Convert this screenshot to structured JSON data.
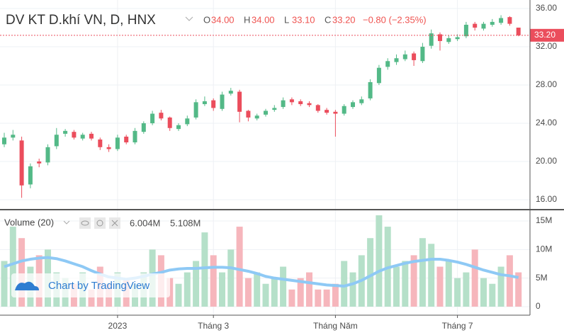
{
  "chart_data": [
    {
      "type": "candlestick",
      "title": "DV KT D.khí VN, D, HNX",
      "ohlc_legend": [
        [
          "O",
          "34.00"
        ],
        [
          "H",
          "34.00"
        ],
        [
          "L",
          "33.10"
        ],
        [
          "C",
          "33.20"
        ]
      ],
      "change_label": "−0.80 (−2.35%)",
      "last_label": "33.20",
      "up_color": "#53b987",
      "down_color": "#eb4d5c",
      "open": [
        21.8,
        22.5,
        22.2,
        17.6,
        20.0,
        19.9,
        21.6,
        22.9,
        23.1,
        22.4,
        22.9,
        22.3,
        21.5,
        21.3,
        22.6,
        22.0,
        23.1,
        24.0,
        25.1,
        24.6,
        23.4,
        23.9,
        24.6,
        26.0,
        26.4,
        25.5,
        27.1,
        27.3,
        25.3,
        24.5,
        24.9,
        25.4,
        25.7,
        26.5,
        26.3,
        26.1,
        25.9,
        25.4,
        25.2,
        25.0,
        25.7,
        26.1,
        26.6,
        28.2,
        29.9,
        30.4,
        30.7,
        31.3,
        30.5,
        32.1,
        33.3,
        32.5,
        32.8,
        33.1,
        34.4,
        33.9,
        34.3,
        34.5,
        35.1,
        34.0
      ],
      "high": [
        23.0,
        23.3,
        22.6,
        19.8,
        20.3,
        21.8,
        23.5,
        23.4,
        23.3,
        23.0,
        23.1,
        22.5,
        21.8,
        22.8,
        22.8,
        23.5,
        24.2,
        25.3,
        25.4,
        24.7,
        24.0,
        24.8,
        26.5,
        26.8,
        26.6,
        27.3,
        27.7,
        27.5,
        25.4,
        25.0,
        25.5,
        25.9,
        26.7,
        26.7,
        26.5,
        26.3,
        26.0,
        25.6,
        25.4,
        26.0,
        26.4,
        26.8,
        28.6,
        30.1,
        30.8,
        31.2,
        31.6,
        31.5,
        32.4,
        33.8,
        33.5,
        33.2,
        33.3,
        34.6,
        34.6,
        34.6,
        34.9,
        35.3,
        35.2,
        34.0
      ],
      "low": [
        21.5,
        22.2,
        16.2,
        17.2,
        19.4,
        19.6,
        21.3,
        22.6,
        22.3,
        22.2,
        22.2,
        21.2,
        21.0,
        21.1,
        21.8,
        21.8,
        22.9,
        23.8,
        24.3,
        23.2,
        23.2,
        23.7,
        24.4,
        25.8,
        25.3,
        25.3,
        26.9,
        24.1,
        24.2,
        24.3,
        24.7,
        25.2,
        25.5,
        25.9,
        25.8,
        25.7,
        25.1,
        24.9,
        22.6,
        24.8,
        25.5,
        25.9,
        26.4,
        28.0,
        29.6,
        30.1,
        30.5,
        30.0,
        30.3,
        31.8,
        31.6,
        32.3,
        32.6,
        32.9,
        33.7,
        33.7,
        34.1,
        34.3,
        34.2,
        33.1
      ],
      "close": [
        22.5,
        22.8,
        17.5,
        19.5,
        19.8,
        21.5,
        22.8,
        23.2,
        22.5,
        22.8,
        22.4,
        21.5,
        21.3,
        22.5,
        22.0,
        23.2,
        24.0,
        25.0,
        24.5,
        23.5,
        23.8,
        24.5,
        26.2,
        26.3,
        25.6,
        27.0,
        27.4,
        25.2,
        24.6,
        24.8,
        25.3,
        25.6,
        26.4,
        26.2,
        26.0,
        25.9,
        25.3,
        25.1,
        25.0,
        25.8,
        26.2,
        26.5,
        28.3,
        29.8,
        30.5,
        30.8,
        31.2,
        30.6,
        32.0,
        33.4,
        32.6,
        32.9,
        33.0,
        34.3,
        34.0,
        34.4,
        34.6,
        35.0,
        34.4,
        33.2
      ],
      "ylim": [
        15.04,
        36.89
      ],
      "yticks": [
        {
          "value": 16,
          "label": "16.00"
        },
        {
          "value": 20,
          "label": "20.00"
        },
        {
          "value": 24,
          "label": "24.00"
        },
        {
          "value": 28,
          "label": "28.00"
        },
        {
          "value": 32,
          "label": "32.00"
        },
        {
          "value": 36,
          "label": "36.00"
        }
      ],
      "grid": true
    },
    {
      "type": "bar",
      "title": "Volume (20)",
      "up_color": "#b5e0c9",
      "down_color": "#f6b6bc",
      "ma_color": "#8ec9f5",
      "last_labels": [
        "6.004M",
        "5.108M"
      ],
      "last_label_colors": [
        "#ef5350",
        "#2196f3"
      ],
      "categories": [
        null,
        null,
        null,
        null,
        null,
        null,
        null,
        null,
        null,
        null,
        null,
        null,
        null,
        "2023",
        null,
        null,
        null,
        null,
        null,
        null,
        null,
        null,
        null,
        null,
        "Tháng 3",
        null,
        null,
        null,
        null,
        null,
        null,
        null,
        null,
        null,
        null,
        null,
        null,
        null,
        "Tháng Năm",
        null,
        null,
        null,
        null,
        null,
        null,
        null,
        null,
        null,
        null,
        null,
        null,
        null,
        "Tháng 7",
        null,
        null,
        null,
        null,
        null,
        null,
        null
      ],
      "values": [
        8,
        14,
        12,
        7,
        9,
        10,
        6,
        5,
        4,
        6,
        3,
        7,
        4,
        6,
        5,
        4,
        6,
        10,
        9,
        5,
        4,
        6,
        8,
        13,
        9,
        6,
        10,
        14,
        5,
        6,
        4,
        5,
        7,
        3,
        5,
        6,
        3,
        3,
        4,
        8,
        6,
        9,
        12,
        16,
        14,
        7,
        8,
        9,
        12,
        11,
        7,
        8,
        5,
        6,
        10,
        5,
        4,
        7,
        9,
        6.004
      ],
      "ma_values": [
        7,
        7.5,
        8,
        8.3,
        8.5,
        8.6,
        8.4,
        8,
        7.5,
        7,
        6.3,
        5.7,
        5.2,
        5,
        4.8,
        5,
        5.3,
        5.7,
        6,
        6.4,
        6.6,
        6.7,
        6.7,
        6.8,
        6.9,
        6.9,
        6.8,
        6.5,
        6.2,
        5.8,
        5.3,
        5,
        4.8,
        4.6,
        4.4,
        4.2,
        4,
        3.8,
        3.7,
        3.6,
        4,
        4.6,
        5.4,
        6.2,
        6.8,
        7.2,
        7.6,
        7.9,
        8.1,
        8.3,
        8.3,
        8.1,
        7.8,
        7.4,
        6.9,
        6.4,
        6,
        5.6,
        5.4,
        5.108
      ],
      "ylim": [
        -1.49,
        16.86
      ],
      "yticks": [
        0,
        {
          "value": 5,
          "label": "5M"
        },
        {
          "value": 10,
          "label": "10M"
        },
        {
          "value": 15,
          "label": "15M"
        }
      ],
      "watermark": "Chart by TradingView"
    }
  ]
}
